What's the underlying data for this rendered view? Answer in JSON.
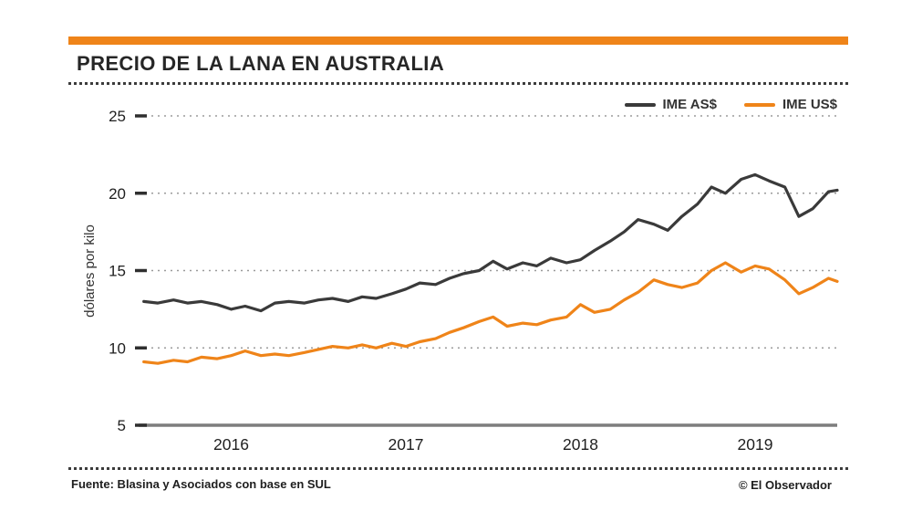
{
  "header": {
    "title": "PRECIO DE LA LANA EN AUSTRALIA"
  },
  "legend": [
    {
      "label": "IME AS$",
      "color": "#3a3a3a"
    },
    {
      "label": "IME US$",
      "color": "#ef8419"
    }
  ],
  "footer": {
    "source": "Fuente: Blasina y Asociados con base en SUL",
    "credit": "© El Observador"
  },
  "chart_data": {
    "type": "line",
    "title": "PRECIO DE LA LANA EN AUSTRALIA",
    "xlabel": "",
    "ylabel": "dólares por kilo",
    "ylim": [
      5,
      25
    ],
    "yticks": [
      5,
      10,
      15,
      20,
      25
    ],
    "xlim": [
      2015.47,
      2019.47
    ],
    "xticks": [
      2016,
      2017,
      2018,
      2019
    ],
    "grid": true,
    "legend_position": "top-right",
    "x": [
      2015.5,
      2015.58,
      2015.67,
      2015.75,
      2015.83,
      2015.92,
      2016.0,
      2016.08,
      2016.17,
      2016.25,
      2016.33,
      2016.42,
      2016.5,
      2016.58,
      2016.67,
      2016.75,
      2016.83,
      2016.92,
      2017.0,
      2017.08,
      2017.17,
      2017.25,
      2017.33,
      2017.42,
      2017.5,
      2017.58,
      2017.67,
      2017.75,
      2017.83,
      2017.92,
      2018.0,
      2018.08,
      2018.17,
      2018.25,
      2018.33,
      2018.42,
      2018.5,
      2018.58,
      2018.67,
      2018.75,
      2018.83,
      2018.92,
      2019.0,
      2019.08,
      2019.17,
      2019.25,
      2019.33,
      2019.42,
      2019.47
    ],
    "series": [
      {
        "name": "IME AS$",
        "color": "#3a3a3a",
        "values": [
          13.0,
          12.9,
          13.1,
          12.9,
          13.0,
          12.8,
          12.5,
          12.7,
          12.4,
          12.9,
          13.0,
          12.9,
          13.1,
          13.2,
          13.0,
          13.3,
          13.2,
          13.5,
          13.8,
          14.2,
          14.1,
          14.5,
          14.8,
          15.0,
          15.6,
          15.1,
          15.5,
          15.3,
          15.8,
          15.5,
          15.7,
          16.3,
          16.9,
          17.5,
          18.3,
          18.0,
          17.6,
          18.5,
          19.3,
          20.4,
          20.0,
          20.9,
          21.2,
          20.8,
          20.4,
          18.5,
          19.0,
          20.1,
          20.2
        ]
      },
      {
        "name": "IME US$",
        "color": "#ef8419",
        "values": [
          9.1,
          9.0,
          9.2,
          9.1,
          9.4,
          9.3,
          9.5,
          9.8,
          9.5,
          9.6,
          9.5,
          9.7,
          9.9,
          10.1,
          10.0,
          10.2,
          10.0,
          10.3,
          10.1,
          10.4,
          10.6,
          11.0,
          11.3,
          11.7,
          12.0,
          11.4,
          11.6,
          11.5,
          11.8,
          12.0,
          12.8,
          12.3,
          12.5,
          13.1,
          13.6,
          14.4,
          14.1,
          13.9,
          14.2,
          15.0,
          15.5,
          14.9,
          15.3,
          15.1,
          14.4,
          13.5,
          13.9,
          14.5,
          14.3
        ]
      }
    ]
  }
}
